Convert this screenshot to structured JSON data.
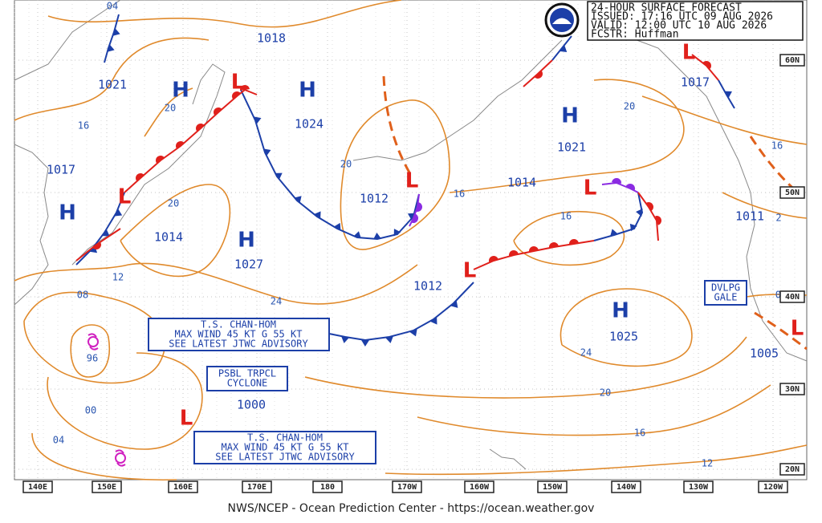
{
  "header": {
    "lines": [
      "24-HOUR SURFACE FORECAST",
      "ISSUED: 17:16 UTC 09 AUG 2026",
      "VALID:  12:00 UTC 10 AUG 2026",
      "FCSTR:  Huffman"
    ]
  },
  "footer": "NWS/NCEP - Ocean Prediction Center - https://ocean.weather.gov",
  "longitude_labels": [
    "140E",
    "150E",
    "160E",
    "170E",
    "180",
    "170W",
    "160W",
    "150W",
    "140W",
    "130W",
    "120W"
  ],
  "latitude_labels": [
    "60N",
    "50N",
    "40N",
    "30N",
    "20N"
  ],
  "symbols": [
    "H",
    "H",
    "H",
    "H",
    "H",
    "H",
    "L",
    "L",
    "L",
    "L",
    "L",
    "L",
    "L",
    "L"
  ],
  "pressure_values": [
    "1018",
    "1021",
    "1024",
    "1017",
    "1012",
    "1014",
    "1027",
    "1012",
    "1021",
    "1014",
    "1017",
    "1011",
    "1025",
    "1005",
    "1000"
  ],
  "isobar_labels": [
    "04",
    "16",
    "20",
    "20",
    "12",
    "08",
    "24",
    "20",
    "16",
    "20",
    "16",
    "24",
    "20",
    "16",
    "12",
    "16",
    "08",
    "96",
    "00",
    "04",
    "2"
  ],
  "boxes": [
    {
      "lines": [
        "T.S. CHAN-HOM",
        "MAX WIND 45 KT G 55 KT",
        "SEE LATEST JTWC ADVISORY"
      ]
    },
    {
      "lines": [
        "PSBL TRPCL",
        "CYCLONE"
      ]
    },
    {
      "lines": [
        "T.S. CHAN-HOM",
        "MAX WIND 45 KT G 55 KT",
        "SEE LATEST JTWC ADVISORY"
      ]
    },
    {
      "lines": [
        "DVLPG",
        "GALE"
      ]
    }
  ]
}
